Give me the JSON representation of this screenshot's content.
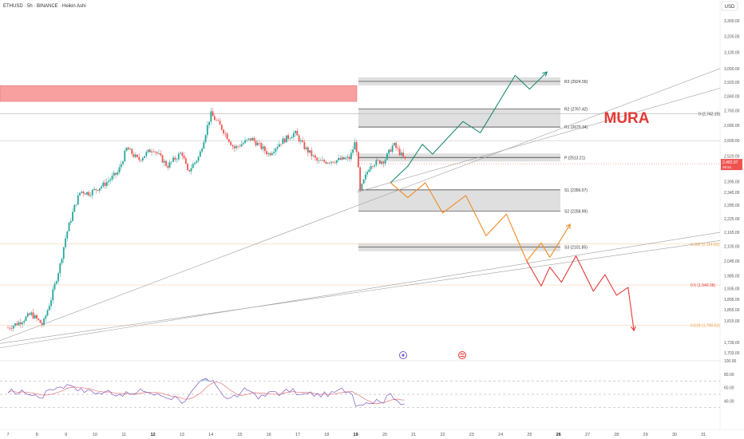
{
  "header": {
    "title": "ETHUSD · 5h · BINANCE · Heikin Ashi",
    "currency_button": "USD"
  },
  "watermark": "MURA",
  "colors": {
    "up": "#26a69a",
    "down": "#ef5350",
    "bull_path": "#1e8a6e",
    "mid_path": "#f08a24",
    "bear_path": "#e53935",
    "fib_label": "#f0a050",
    "resistance_zone": "#f8a0a0",
    "pivot_zone": "#d9d9d9",
    "rsi_line": "#7e57c2",
    "rsi_ma": "#e57373"
  },
  "icons": [
    "flag-icon",
    "event-icon"
  ],
  "chart_data": {
    "type": "candlestick",
    "symbol": "ETHUSD",
    "interval": "5h",
    "exchange": "BINANCE",
    "chart_style": "Heikin Ashi",
    "price_axis": {
      "scale": "log",
      "range": [
        1700,
        3400
      ],
      "ticks": [
        "3,300.00",
        "3,200.00",
        "3,100.00",
        "3,000.00",
        "2,920.00",
        "2,840.00",
        "2,760.00",
        "2,680.00",
        "2,600.00",
        "2,520.00",
        "2,395.00",
        "2,345.00",
        "2,285.00",
        "2,225.00",
        "2,165.00",
        "2,105.00",
        "2,045.00",
        "1,985.00",
        "1,935.00",
        "1,895.00",
        "1,855.00",
        "1,815.00",
        "1,739.00",
        "1,703.00"
      ]
    },
    "time_axis": {
      "ticks": [
        "7",
        "8",
        "9",
        "10",
        "11",
        "12",
        "13",
        "14",
        "15",
        "16",
        "17",
        "18",
        "19",
        "20",
        "21",
        "22",
        "23",
        "24",
        "25",
        "26",
        "27",
        "28",
        "29",
        "30",
        "31"
      ],
      "bold_ticks": [
        "12",
        "19",
        "26"
      ]
    },
    "last_price": {
      "value": 2482.07,
      "label": "2,482.07",
      "sub_label": "26:51"
    },
    "pivot_levels": [
      {
        "name": "R3",
        "label": "R3 (2924.56)",
        "value": 2924.56
      },
      {
        "name": "R2",
        "label": "R2 (2767.42)",
        "value": 2767.42
      },
      {
        "name": "R1",
        "label": "R1 (2670.34)",
        "value": 2670.34
      },
      {
        "name": "P",
        "label": "P (2513.21)",
        "value": 2513.21
      },
      {
        "name": "S1",
        "label": "S1 (2356.07)",
        "value": 2356.07
      },
      {
        "name": "S2",
        "label": "S2 (2258.99)",
        "value": 2258.99
      },
      {
        "name": "S3",
        "label": "S3 (2101.85)",
        "value": 2101.85
      }
    ],
    "fib_levels": [
      {
        "label": "0 (2,742.19)",
        "value": 2742.19
      },
      {
        "label": "0.382 (2,114.81)",
        "value": 2114.81
      },
      {
        "label": "0.5 (1,949.38)",
        "value": 1949.38
      },
      {
        "label": "0.618 (1,798.52)",
        "value": 1798.52
      }
    ],
    "resistance_zone": {
      "from": 2810,
      "to": 2900
    },
    "projections": {
      "bullish": [
        [
          20.2,
          2390
        ],
        [
          20.8,
          2470
        ],
        [
          21.3,
          2580
        ],
        [
          21.65,
          2530
        ],
        [
          22.7,
          2700
        ],
        [
          23.3,
          2640
        ],
        [
          24.5,
          2960
        ],
        [
          25.0,
          2880
        ],
        [
          25.6,
          2980
        ]
      ],
      "neutral": [
        [
          20.2,
          2390
        ],
        [
          20.8,
          2320
        ],
        [
          21.4,
          2390
        ],
        [
          22.0,
          2250
        ],
        [
          22.8,
          2330
        ],
        [
          23.5,
          2150
        ],
        [
          24.2,
          2245
        ],
        [
          24.9,
          2045
        ],
        [
          25.4,
          2120
        ],
        [
          25.7,
          2060
        ],
        [
          26.4,
          2200
        ]
      ],
      "bearish": [
        [
          24.9,
          2045
        ],
        [
          25.4,
          1945
        ],
        [
          25.7,
          2020
        ],
        [
          26.1,
          1960
        ],
        [
          26.6,
          2065
        ],
        [
          27.2,
          1925
        ],
        [
          27.6,
          1990
        ],
        [
          28.0,
          1910
        ],
        [
          28.4,
          1940
        ],
        [
          28.6,
          1780
        ]
      ]
    },
    "rsi": {
      "ticks": [
        "100.00",
        "80.00",
        "60.00",
        "40.00"
      ],
      "levels": [
        70,
        50,
        30
      ]
    }
  }
}
